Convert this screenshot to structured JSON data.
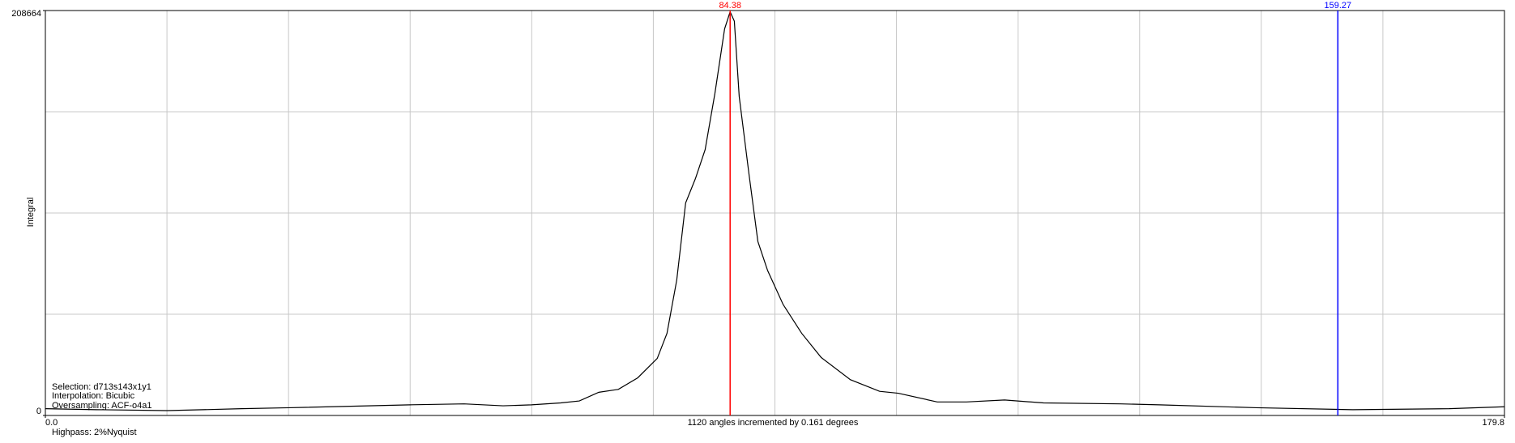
{
  "chart_data": {
    "type": "line",
    "x_label": "1120 angles incremented by 0.161 degrees",
    "y_label": "Integral",
    "annotations": [
      "Selection: d713s143x1y1",
      "Interpolation: Bicubic",
      "Oversampling: ACF-o4a1"
    ],
    "footnote": "Highpass: 2%Nyquist",
    "x": [
      0,
      6.3,
      15.0,
      24.2,
      30.1,
      44.9,
      51.6,
      56.4,
      59.9,
      63.5,
      65.8,
      68.2,
      70.6,
      73.0,
      75.4,
      76.6,
      77.8,
      78.9,
      80.1,
      81.3,
      82.5,
      83.7,
      84.38,
      84.9,
      85.5,
      86.7,
      87.8,
      89.0,
      90.9,
      93.2,
      95.6,
      99.2,
      102.8,
      105.1,
      109.9,
      113.5,
      118.2,
      123.0,
      132.5,
      137.3,
      149.2,
      161.1,
      173.0,
      179.8
    ],
    "series": [
      {
        "color": "#000000",
        "values": [
          3486,
          2988,
          2490,
          3486,
          3984,
          5478,
          5976,
          4980,
          5478,
          6474,
          7470,
          11952,
          13446,
          19422,
          29382,
          42330,
          69720,
          109560,
          122010,
          136950,
          165834,
          199200,
          208000,
          203180,
          164340,
          124500,
          89640,
          74700,
          57270,
          42330,
          29880,
          18426,
          12450,
          11454,
          6972,
          6972,
          7968,
          6474,
          5976,
          5478,
          3984,
          2988,
          3486,
          4482
        ]
      }
    ],
    "markers": [
      {
        "value": 84.38,
        "color": "#ff0000"
      },
      {
        "value": 159.27,
        "color": "#0000ff"
      }
    ],
    "xlim": [
      0,
      179.8
    ],
    "xticks": [
      {
        "value": 0,
        "label": "0.0"
      },
      {
        "value": 179.8,
        "label": "179.8"
      }
    ],
    "ylim": [
      0,
      208664
    ],
    "yticks": [
      0,
      208664
    ],
    "grid": {
      "x_divisions": 12,
      "y_divisions": 4
    }
  }
}
